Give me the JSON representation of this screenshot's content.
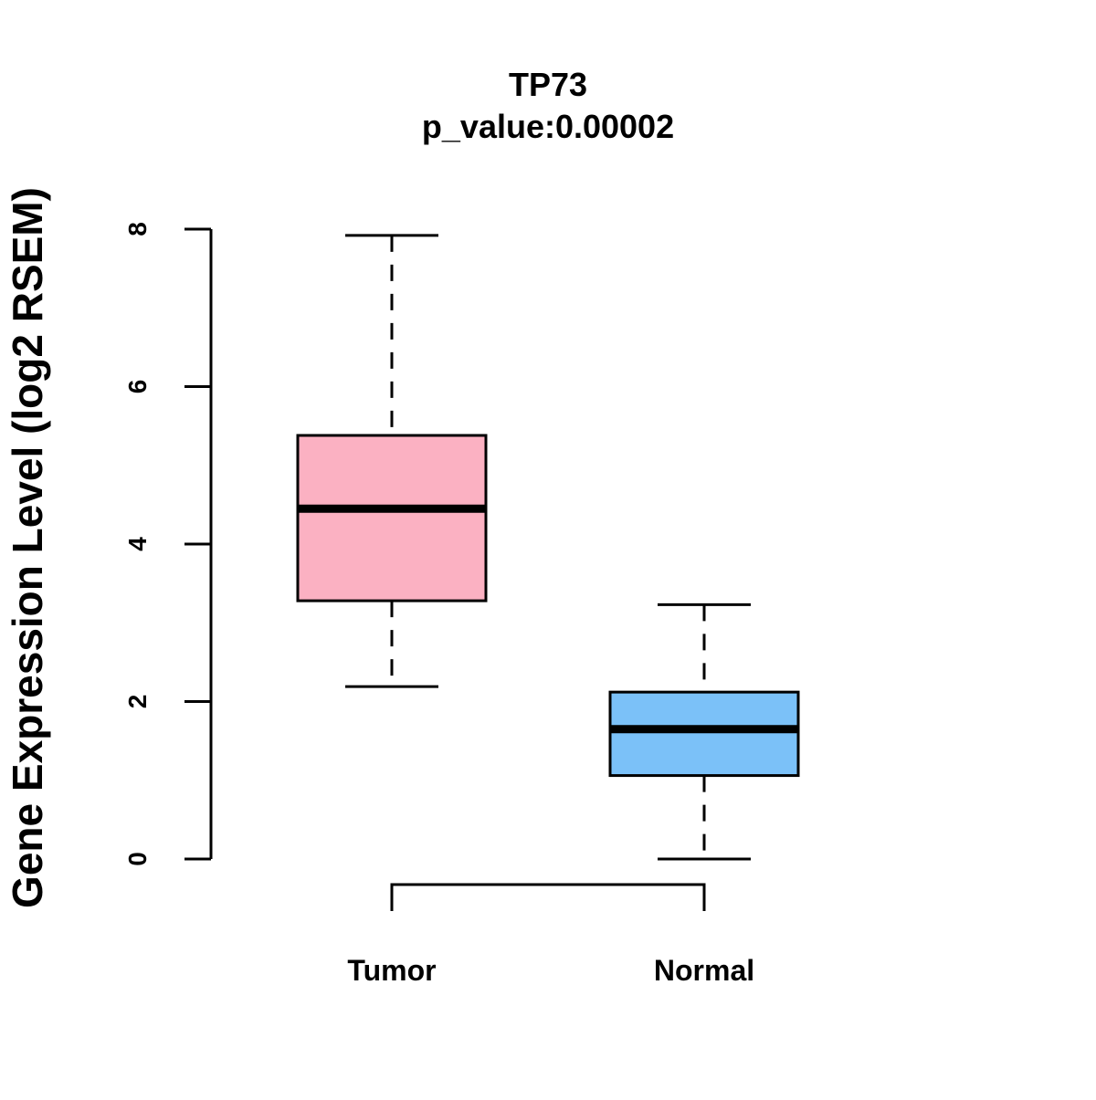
{
  "chart_data": {
    "type": "boxplot",
    "title": "TP73",
    "subtitle": "p_value:0.00002",
    "xlabel": "",
    "ylabel": "Gene Expression Level (log2 RSEM)",
    "ylim": [
      0,
      8
    ],
    "yticks": [
      0,
      2,
      4,
      6,
      8
    ],
    "ytick_labels": [
      "0",
      "2",
      "4",
      "6",
      "8"
    ],
    "categories": [
      "Tumor",
      "Normal"
    ],
    "series": [
      {
        "name": "Tumor",
        "whisker_low": 2.19,
        "q1": 3.28,
        "median": 4.45,
        "q3": 5.38,
        "whisker_high": 7.92,
        "color": "#FBB1C2"
      },
      {
        "name": "Normal",
        "whisker_low": 0.0,
        "q1": 1.06,
        "median": 1.65,
        "q3": 2.12,
        "whisker_high": 3.23,
        "color": "#7BC1F8"
      }
    ],
    "significance_bracket": {
      "from": "Tumor",
      "to": "Normal"
    },
    "grid": false,
    "legend": "none"
  }
}
